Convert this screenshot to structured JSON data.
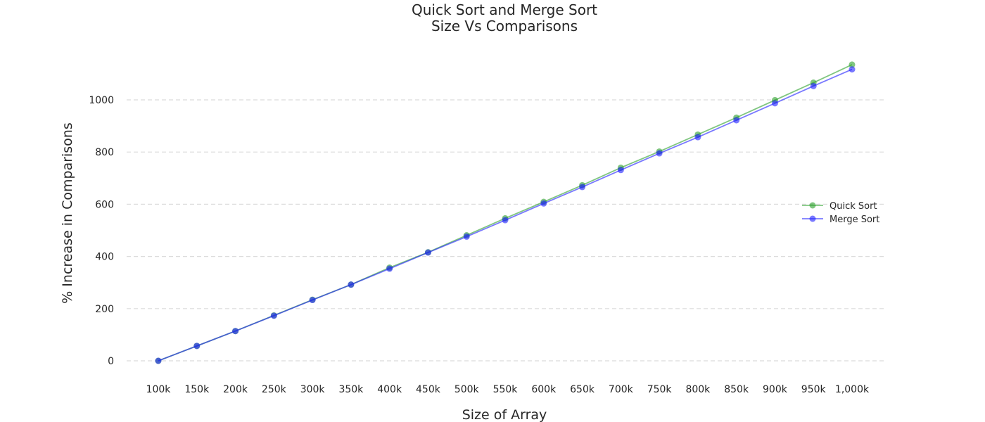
{
  "chart_data": {
    "type": "line",
    "title": "Quick Sort and Merge Sort",
    "subtitle": "Size Vs Comparisons",
    "xlabel": "Size of Array",
    "ylabel": "% Increase in Comparisons",
    "categories": [
      "100k",
      "150k",
      "200k",
      "250k",
      "300k",
      "350k",
      "400k",
      "450k",
      "500k",
      "550k",
      "600k",
      "650k",
      "700k",
      "750k",
      "800k",
      "850k",
      "900k",
      "950k",
      "1,000k"
    ],
    "yticks": [
      0,
      200,
      400,
      600,
      800,
      1000
    ],
    "ylim": [
      -60,
      1210
    ],
    "grid": true,
    "legend_position": "center-right",
    "series": [
      {
        "name": "Quick Sort",
        "color": "#2ca02c",
        "values": [
          0,
          57,
          114,
          174,
          234,
          292,
          357,
          416,
          481,
          546,
          609,
          673,
          740,
          802,
          867,
          932,
          999,
          1066,
          1135
        ]
      },
      {
        "name": "Merge Sort",
        "color": "#1f1fff",
        "values": [
          0,
          57,
          114,
          173,
          233,
          292,
          353,
          415,
          476,
          539,
          603,
          666,
          731,
          795,
          857,
          922,
          987,
          1053,
          1117
        ]
      }
    ]
  }
}
